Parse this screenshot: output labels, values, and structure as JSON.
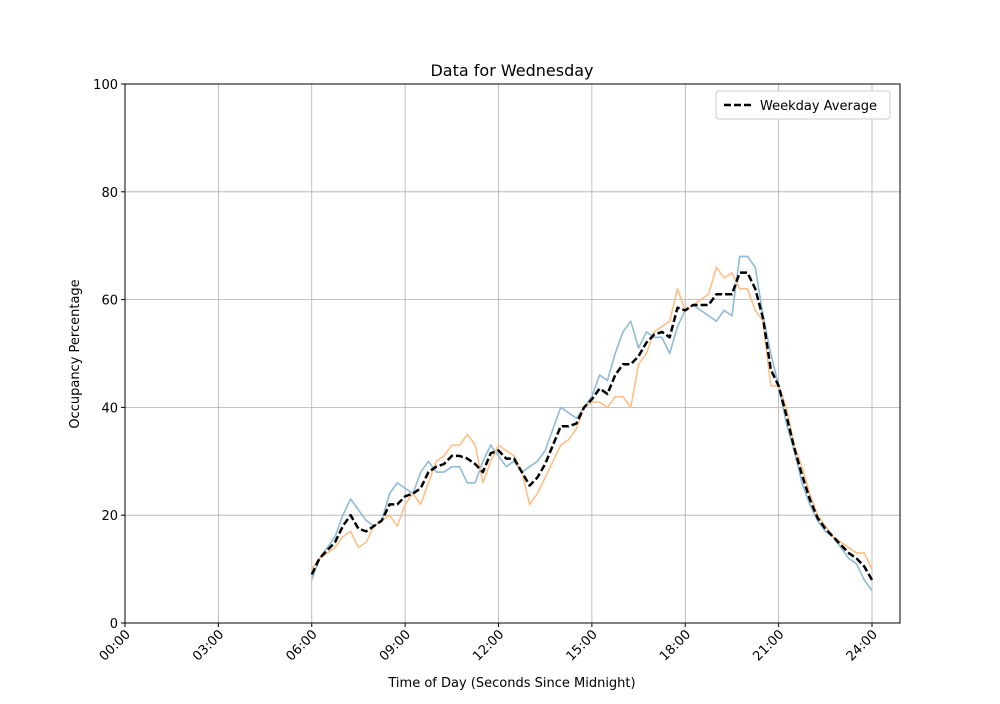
{
  "chart_data": {
    "type": "line",
    "title": "Data for Wednesday",
    "xlabel": "Time of Day (Seconds Since Midnight)",
    "ylabel": "Occupancy Percentage",
    "x": [
      21600,
      22500,
      23400,
      24300,
      25200,
      26100,
      27000,
      27900,
      28800,
      29700,
      30600,
      31500,
      32400,
      33300,
      34200,
      35100,
      36000,
      36900,
      37800,
      38700,
      39600,
      40500,
      41400,
      42300,
      43200,
      44100,
      45000,
      45900,
      46800,
      47700,
      48600,
      49500,
      50400,
      51300,
      52200,
      53100,
      54000,
      54900,
      55800,
      56700,
      57600,
      58500,
      59400,
      60300,
      61200,
      62100,
      63000,
      63900,
      64800,
      65700,
      66600,
      67500,
      68400,
      69300,
      70200,
      71100,
      72000,
      72900,
      73800,
      74700,
      75600,
      76500,
      77400,
      78300,
      79200,
      80100,
      81000,
      81900,
      82800,
      83700,
      84600,
      85500,
      86400
    ],
    "series": [
      {
        "color": "#8fbbd9",
        "linestyle": "solid",
        "values": [
          8,
          12,
          14,
          16,
          20,
          23,
          21,
          19,
          18,
          19,
          24,
          26,
          25,
          24,
          28,
          30,
          28,
          28,
          29,
          29,
          26,
          26,
          30,
          33,
          31,
          29,
          30,
          28,
          29,
          30,
          32,
          36,
          40,
          39,
          38,
          40,
          42,
          46,
          45,
          50,
          54,
          56,
          51,
          54,
          53,
          53,
          50,
          55,
          58,
          59,
          58,
          57,
          56,
          58,
          57,
          68,
          68,
          66,
          57,
          50,
          44,
          37,
          32,
          26,
          22,
          19,
          17,
          16,
          14,
          12,
          11,
          8,
          6
        ]
      },
      {
        "color": "#ffbf86",
        "linestyle": "solid",
        "values": [
          10,
          12,
          13,
          14,
          16,
          17,
          14,
          15,
          18,
          19,
          20,
          18,
          22,
          24,
          22,
          26,
          30,
          31,
          33,
          33,
          35,
          33,
          26,
          30,
          33,
          32,
          31,
          28,
          22,
          24,
          27,
          30,
          33,
          34,
          36,
          40,
          41,
          41,
          40,
          42,
          42,
          40,
          48,
          50,
          54,
          55,
          56,
          62,
          58,
          59,
          60,
          61,
          66,
          64,
          65,
          62,
          62,
          58,
          56,
          44,
          44,
          40,
          33,
          29,
          24,
          20,
          18,
          16,
          15,
          14,
          13,
          13,
          10
        ]
      },
      {
        "name": "Weekday Average",
        "color": "#000000",
        "linestyle": "dashed",
        "values": [
          9,
          12,
          13.5,
          15,
          18,
          20,
          17.5,
          17,
          18,
          19,
          22,
          22,
          23.5,
          24,
          25,
          28,
          29,
          29.5,
          31,
          31,
          30.5,
          29.5,
          28,
          31.5,
          32,
          30.5,
          30.5,
          28,
          25.5,
          27,
          29.5,
          33,
          36.5,
          36.5,
          37,
          40,
          41.5,
          43.5,
          42.5,
          46,
          48,
          48,
          49.5,
          52,
          53.5,
          54,
          53,
          58.5,
          58,
          59,
          59,
          59,
          61,
          61,
          61,
          65,
          65,
          62,
          56.5,
          47,
          44,
          38.5,
          32.5,
          27.5,
          23,
          19.5,
          17.5,
          16,
          14.5,
          13,
          12,
          10.5,
          8
        ]
      }
    ],
    "xlim": [
      0,
      89640
    ],
    "ylim": [
      0,
      100
    ],
    "xticks": [
      {
        "value": 0,
        "label": "00:00"
      },
      {
        "value": 10800,
        "label": "03:00"
      },
      {
        "value": 21600,
        "label": "06:00"
      },
      {
        "value": 32400,
        "label": "09:00"
      },
      {
        "value": 43200,
        "label": "12:00"
      },
      {
        "value": 54000,
        "label": "15:00"
      },
      {
        "value": 64800,
        "label": "18:00"
      },
      {
        "value": 75600,
        "label": "21:00"
      },
      {
        "value": 86400,
        "label": "24:00"
      }
    ],
    "yticks": [
      0,
      20,
      40,
      60,
      80,
      100
    ],
    "grid": true,
    "legend": "upper right"
  }
}
